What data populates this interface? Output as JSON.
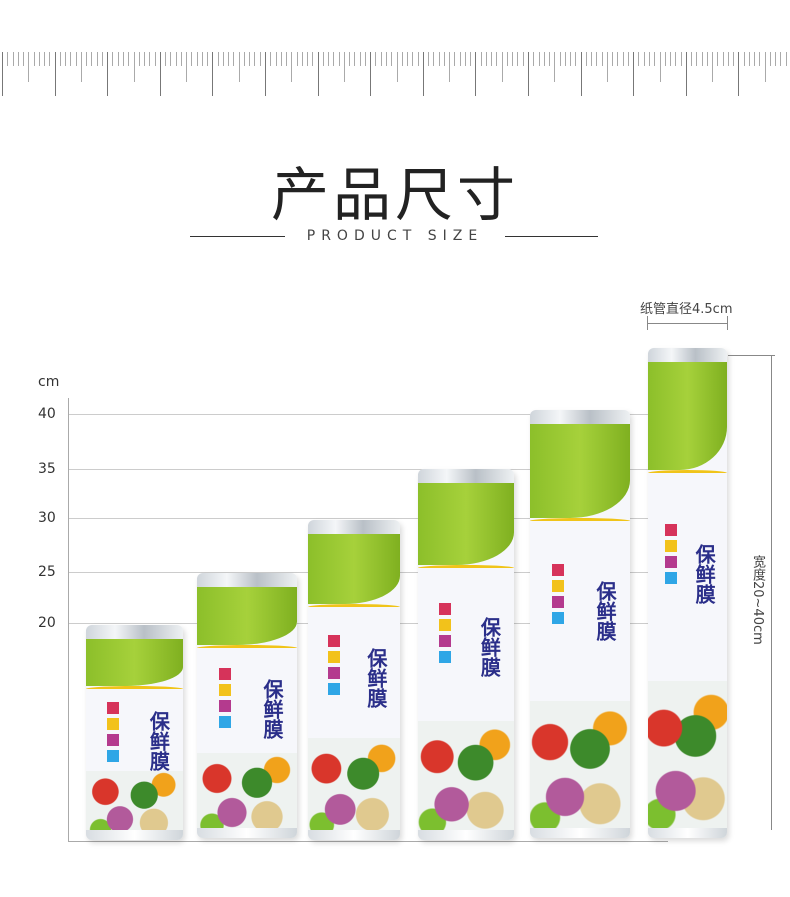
{
  "header": {
    "title": "产品尺寸",
    "subtitle": "PRODUCT SIZE"
  },
  "axis": {
    "unit": "cm",
    "ticks": [
      "40",
      "35",
      "30",
      "25",
      "20"
    ]
  },
  "dimensions": {
    "core_diameter": "纸管直径4.5cm",
    "width_range": "宽度20~40cm"
  },
  "product": {
    "label": "保鲜膜",
    "roll_count": 6,
    "colors": {
      "green": "#8cbf2a",
      "label": "#2b2f8a",
      "swoosh": "#f0c419"
    }
  }
}
